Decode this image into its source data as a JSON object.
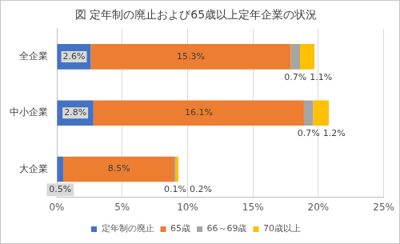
{
  "chart_data": {
    "type": "bar",
    "title": "図 定年制の廃止および65歳以上定年企業の状況",
    "orientation": "horizontal",
    "stacked": true,
    "categories": [
      "全企業",
      "中小企業",
      "大企業"
    ],
    "series": [
      {
        "name": "定年制の廃止",
        "color": "#4472c4",
        "values": [
          2.6,
          2.8,
          0.5
        ],
        "value_labels": [
          "2.6%",
          "2.8%",
          "0.5%"
        ]
      },
      {
        "name": "65歳",
        "color": "#ed7d31",
        "values": [
          15.3,
          16.1,
          8.5
        ],
        "value_labels": [
          "15.3%",
          "16.1%",
          "8.5%"
        ]
      },
      {
        "name": "66～69歳",
        "color": "#a5a5a5",
        "values": [
          0.7,
          0.7,
          0.1
        ],
        "value_labels": [
          "0.7%",
          "0.7%",
          "0.1%"
        ]
      },
      {
        "name": "70歳以上",
        "color": "#ffc000",
        "values": [
          1.1,
          1.2,
          0.2
        ],
        "value_labels": [
          "1.1%",
          "1.2%",
          "0.2%"
        ]
      }
    ],
    "xlim": [
      0,
      25
    ],
    "xticks": [
      {
        "value": 0,
        "label": "0%"
      },
      {
        "value": 5,
        "label": "5%"
      },
      {
        "value": 10,
        "label": "10%"
      },
      {
        "value": 15,
        "label": "15%"
      },
      {
        "value": 20,
        "label": "20%"
      },
      {
        "value": 25,
        "label": "25%"
      }
    ],
    "grid": true,
    "legend": "bottom",
    "data_labels": true
  }
}
